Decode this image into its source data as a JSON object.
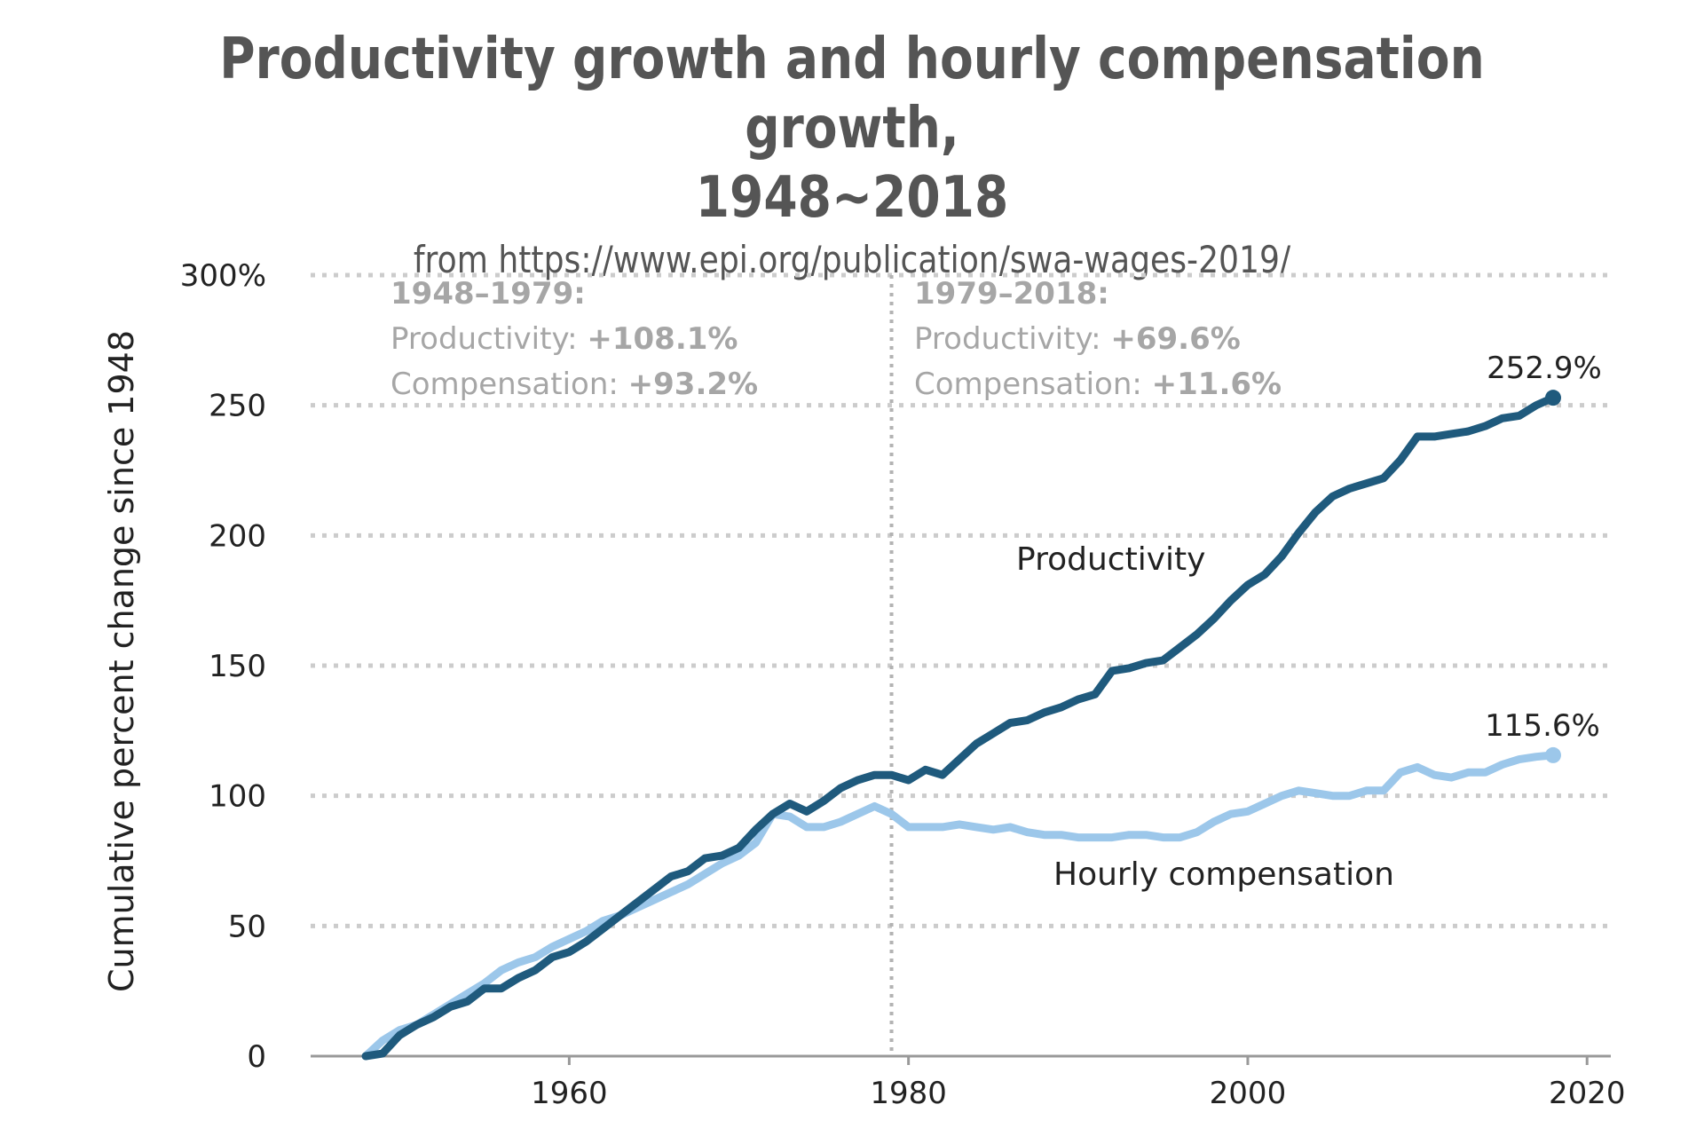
{
  "header": {
    "title_line1": "Productivity growth and hourly compensation growth,",
    "title_line2": "1948~2018",
    "subtitle": "from https://www.epi.org/publication/swa-wages-2019/"
  },
  "annotations": {
    "left": {
      "heading": "1948–1979:",
      "prod_label": "Productivity: ",
      "prod_value": "+108.1%",
      "comp_label": "Compensation: ",
      "comp_value": "+93.2%"
    },
    "right": {
      "heading": "1979–2018:",
      "prod_label": "Productivity: ",
      "prod_value": "+69.6%",
      "comp_label": "Compensation: ",
      "comp_value": "+11.6%"
    }
  },
  "labels": {
    "productivity": "Productivity",
    "compensation": "Hourly compensation",
    "productivity_end": "252.9%",
    "compensation_end": "115.6%"
  },
  "chart_data": {
    "type": "line",
    "title": "Productivity growth and hourly compensation growth, 1948~2018",
    "subtitle": "from https://www.epi.org/publication/swa-wages-2019/",
    "xlabel": "",
    "ylabel": "Cumulative percent change since 1948",
    "xlim": [
      1945,
      2021
    ],
    "ylim": [
      0,
      300
    ],
    "x_ticks": [
      1960,
      1980,
      2000,
      2020
    ],
    "y_ticks": [
      0,
      50,
      100,
      150,
      200,
      250,
      300
    ],
    "y_tick_labels": [
      "0",
      "50",
      "100",
      "150",
      "200",
      "250",
      "300%"
    ],
    "reference_line_x": 1979,
    "grid": "horizontal dotted",
    "series": [
      {
        "name": "Productivity",
        "color": "#1f5a7d",
        "x": [
          1948,
          1949,
          1950,
          1951,
          1952,
          1953,
          1954,
          1955,
          1956,
          1957,
          1958,
          1959,
          1960,
          1961,
          1962,
          1963,
          1964,
          1965,
          1966,
          1967,
          1968,
          1969,
          1970,
          1971,
          1972,
          1973,
          1974,
          1975,
          1976,
          1977,
          1978,
          1979,
          1980,
          1981,
          1982,
          1983,
          1984,
          1985,
          1986,
          1987,
          1988,
          1989,
          1990,
          1991,
          1992,
          1993,
          1994,
          1995,
          1996,
          1997,
          1998,
          1999,
          2000,
          2001,
          2002,
          2003,
          2004,
          2005,
          2006,
          2007,
          2008,
          2009,
          2010,
          2011,
          2012,
          2013,
          2014,
          2015,
          2016,
          2017,
          2018
        ],
        "values": [
          0,
          1,
          8,
          12,
          15,
          19,
          21,
          26,
          26,
          30,
          33,
          38,
          40,
          44,
          49,
          54,
          59,
          64,
          69,
          71,
          76,
          77,
          80,
          87,
          93,
          97,
          94,
          98,
          103,
          106,
          108,
          108,
          106,
          110,
          108,
          114,
          120,
          124,
          128,
          129,
          132,
          134,
          137,
          139,
          148,
          149,
          151,
          152,
          157,
          162,
          168,
          175,
          181,
          185,
          192,
          201,
          209,
          215,
          218,
          220,
          222,
          229,
          238,
          238,
          239,
          240,
          242,
          245,
          246,
          250,
          252.9
        ]
      },
      {
        "name": "Hourly compensation",
        "color": "#9cc7ea",
        "x": [
          1948,
          1949,
          1950,
          1951,
          1952,
          1953,
          1954,
          1955,
          1956,
          1957,
          1958,
          1959,
          1960,
          1961,
          1962,
          1963,
          1964,
          1965,
          1966,
          1967,
          1968,
          1969,
          1970,
          1971,
          1972,
          1973,
          1974,
          1975,
          1976,
          1977,
          1978,
          1979,
          1980,
          1981,
          1982,
          1983,
          1984,
          1985,
          1986,
          1987,
          1988,
          1989,
          1990,
          1991,
          1992,
          1993,
          1994,
          1995,
          1996,
          1997,
          1998,
          1999,
          2000,
          2001,
          2002,
          2003,
          2004,
          2005,
          2006,
          2007,
          2008,
          2009,
          2010,
          2011,
          2012,
          2013,
          2014,
          2015,
          2016,
          2017,
          2018
        ],
        "values": [
          0,
          6,
          10,
          12,
          16,
          20,
          24,
          28,
          33,
          36,
          38,
          42,
          45,
          48,
          52,
          54,
          57,
          60,
          63,
          66,
          70,
          74,
          77,
          82,
          93,
          92,
          88,
          88,
          90,
          93,
          96,
          93,
          88,
          88,
          88,
          89,
          88,
          87,
          88,
          86,
          85,
          85,
          84,
          84,
          84,
          85,
          85,
          84,
          84,
          86,
          90,
          93,
          94,
          97,
          100,
          102,
          101,
          100,
          100,
          102,
          102,
          109,
          111,
          108,
          107,
          109,
          109,
          112,
          114,
          115,
          115.6
        ]
      }
    ]
  }
}
